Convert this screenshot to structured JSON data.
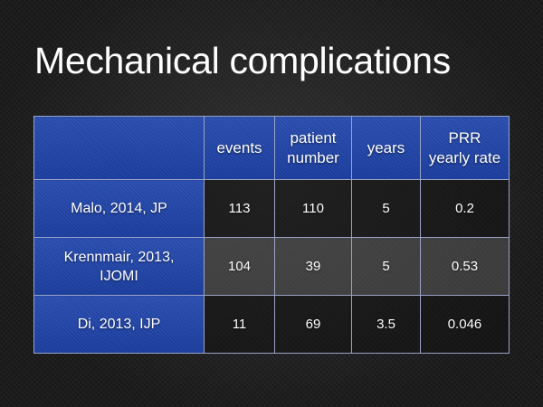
{
  "slide": {
    "title": "Mechanical complications"
  },
  "table": {
    "columns": {
      "events": "events",
      "patients": [
        "patient",
        "number"
      ],
      "years": "years",
      "rate": [
        "PRR",
        "yearly rate"
      ]
    },
    "rows": [
      {
        "label": [
          "Malo, 2014, JP"
        ],
        "events": "113",
        "patients": "110",
        "years": "5",
        "rate": "0.2"
      },
      {
        "label": [
          "Krennmair, 2013,",
          "IJOMI"
        ],
        "events": "104",
        "patients": "39",
        "years": "5",
        "rate": "0.53"
      },
      {
        "label": [
          "Di, 2013, IJP"
        ],
        "events": "11",
        "patients": "69",
        "years": "3.5",
        "rate": "0.046"
      }
    ]
  },
  "colors": {
    "header_blue": "#1c41a8",
    "grid_line": "#9aa3c8",
    "background": "#1c1c1c",
    "text": "#ffffff"
  }
}
